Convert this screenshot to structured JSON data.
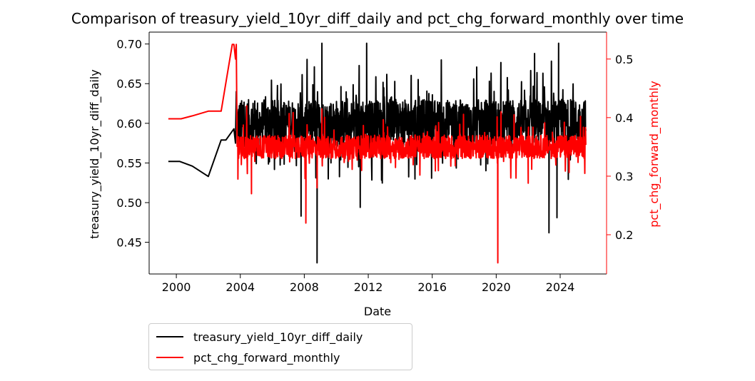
{
  "chart_data": {
    "type": "line",
    "title": "Comparison of treasury_yield_10yr_diff_daily and pct_chg_forward_monthly over time",
    "xlabel": "Date",
    "ylabel_left": "treasury_yield_10yr_diff_daily",
    "ylabel_right": "pct_chg_forward_monthly",
    "xlim": [
      1998.3,
      2026.9
    ],
    "ylim_left": [
      0.41,
      0.715
    ],
    "ylim_right": [
      0.133,
      0.546
    ],
    "x_ticks": [
      "2000",
      "2004",
      "2008",
      "2012",
      "2016",
      "2020",
      "2024"
    ],
    "y_ticks_left": [
      "0.45",
      "0.50",
      "0.55",
      "0.60",
      "0.65",
      "0.70"
    ],
    "y_ticks_right": [
      "0.2",
      "0.3",
      "0.4",
      "0.5"
    ],
    "legend_placement": "below-left",
    "grid": false,
    "series": [
      {
        "name": "treasury_yield_10yr_diff_daily",
        "axis": "left",
        "color": "#000000",
        "x": [
          1999.5,
          2000.2,
          2001.0,
          2002.0,
          2002.8,
          2003.1,
          2003.6,
          2003.7,
          2003.75,
          2003.8
        ],
        "y": [
          0.552,
          0.552,
          0.546,
          0.533,
          0.579,
          0.579,
          0.593,
          0.575,
          0.64,
          0.6
        ],
        "dense_range": [
          2003.8,
          2025.6
        ],
        "dense_base": 0.6,
        "dense_spread": 0.03,
        "extremes": [
          {
            "x": 2008.8,
            "y": 0.424
          },
          {
            "x": 2009.1,
            "y": 0.701
          },
          {
            "x": 2011.5,
            "y": 0.494
          },
          {
            "x": 2011.9,
            "y": 0.701
          },
          {
            "x": 2023.3,
            "y": 0.462
          },
          {
            "x": 2023.8,
            "y": 0.481
          },
          {
            "x": 2023.9,
            "y": 0.701
          },
          {
            "x": 2007.8,
            "y": 0.483
          },
          {
            "x": 2022.4,
            "y": 0.688
          }
        ]
      },
      {
        "name": "pct_chg_forward_monthly",
        "axis": "right",
        "color": "#ff0000",
        "x": [
          1999.5,
          2000.3,
          2001.0,
          2002.0,
          2002.8,
          2003.1,
          2003.5,
          2003.6,
          2003.7,
          2003.75
        ],
        "y": [
          0.398,
          0.398,
          0.403,
          0.411,
          0.411,
          0.46,
          0.525,
          0.525,
          0.5,
          0.525
        ],
        "dense_range": [
          2003.8,
          2025.6
        ],
        "dense_base": 0.35,
        "dense_spread": 0.02,
        "extremes": [
          {
            "x": 2003.85,
            "y": 0.295
          },
          {
            "x": 2004.7,
            "y": 0.27
          },
          {
            "x": 2008.1,
            "y": 0.22
          },
          {
            "x": 2008.8,
            "y": 0.28
          },
          {
            "x": 2020.1,
            "y": 0.152
          },
          {
            "x": 2020.3,
            "y": 0.41
          },
          {
            "x": 2022.0,
            "y": 0.288
          },
          {
            "x": 2004.4,
            "y": 0.42
          },
          {
            "x": 2009.1,
            "y": 0.415
          }
        ]
      }
    ]
  }
}
